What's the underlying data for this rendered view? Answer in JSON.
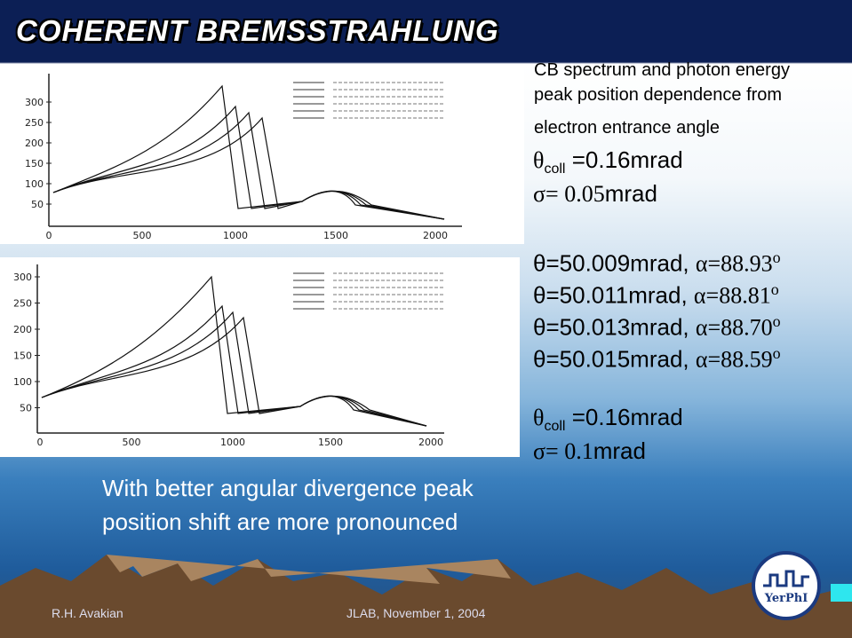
{
  "title": "COHERENT BREMSSTRAHLUNG",
  "description": [
    "CB spectrum and photon energy",
    "peak position dependence from",
    "electron entrance  angle"
  ],
  "setup1": {
    "coll": {
      "symbol": "θ",
      "sub": "coll",
      "text": " =0.16mrad"
    },
    "sigma": {
      "symbol": "σ= ",
      "value": "0.05",
      "unit": "mrad"
    }
  },
  "angles": [
    {
      "theta": "θ=50.009mrad, ",
      "alpha": "α=88.93",
      "deg": "o"
    },
    {
      "theta": "θ=50.011mrad, ",
      "alpha": "α=88.81",
      "deg": "o"
    },
    {
      "theta": "θ=50.013mrad, ",
      "alpha": "α=88.70",
      "deg": "o"
    },
    {
      "theta": "θ=50.015mrad, ",
      "alpha": "α=88.59",
      "deg": "o"
    }
  ],
  "setup2": {
    "coll": {
      "symbol": "θ",
      "sub": "coll",
      "text": " =0.16mrad"
    },
    "sigma": {
      "symbol": "σ= ",
      "value": "0.1",
      "unit": "mrad"
    }
  },
  "conclusion": [
    "With better angular divergence peak",
    "position shift are more pronounced"
  ],
  "plots": [
    {
      "yticks": [
        "300",
        "250",
        "200",
        "150",
        "100",
        "50"
      ],
      "xticks": [
        "0",
        "500",
        "1000",
        "1500",
        "2000"
      ]
    },
    {
      "yticks": [
        "300",
        "250",
        "200",
        "150",
        "100",
        "50"
      ],
      "xticks": [
        "0",
        "500",
        "1000",
        "1500",
        "2000"
      ]
    }
  ],
  "footer": {
    "author": "R.H. Avakian",
    "event": "JLAB, November 1, 2004",
    "logo": "YerPhI"
  }
}
